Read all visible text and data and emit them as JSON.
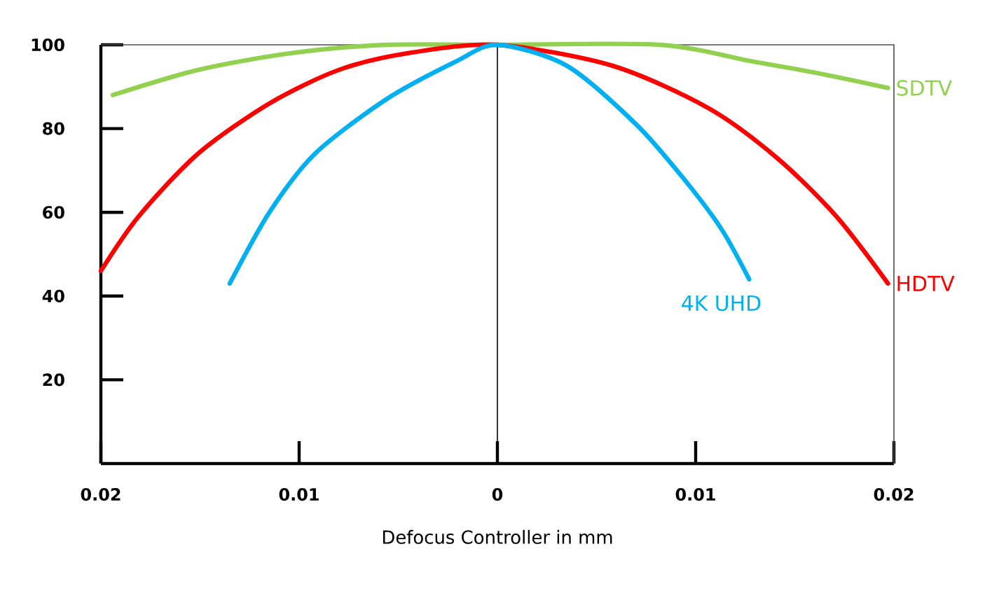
{
  "chart_data": {
    "type": "line",
    "xlabel": "Defocus Controller in mm",
    "xlim": [
      -0.02,
      0.02
    ],
    "ylim": [
      0,
      100
    ],
    "xticks": [
      {
        "value": -0.02,
        "label": "0.02"
      },
      {
        "value": -0.01,
        "label": "0.01"
      },
      0,
      0.01,
      0.02
    ],
    "yticks": [
      20,
      40,
      60,
      80,
      100
    ],
    "legend": false,
    "grid": false,
    "marker": "none",
    "line_style": "solid",
    "ref_lines": [
      {
        "axis": "x",
        "value": 0,
        "color": "#000000"
      }
    ],
    "series": [
      {
        "name": "SDTV",
        "color": "#92d050",
        "x": [
          -0.0194,
          -0.0151,
          -0.0104,
          -0.0056,
          0,
          0.0082,
          0.0129,
          0.0164,
          0.0197
        ],
        "values": [
          88,
          94,
          98,
          100,
          100,
          100,
          96,
          93,
          89.7
        ]
      },
      {
        "name": "HDTV",
        "color": "#ff0000",
        "x": [
          -0.02,
          -0.0181,
          -0.0151,
          -0.0115,
          -0.008,
          -0.0045,
          0,
          0.0058,
          0.0106,
          0.0141,
          0.0171,
          0.0197
        ],
        "values": [
          46,
          59,
          74,
          86,
          94,
          98,
          100,
          95,
          85,
          73,
          59,
          43
        ]
      },
      {
        "name": "4K UHD",
        "color": "#00b0f0",
        "x": [
          -0.0135,
          -0.0115,
          -0.0092,
          -0.0056,
          -0.0021,
          0,
          0.0035,
          0.007,
          0.0094,
          0.0113,
          0.0127
        ],
        "values": [
          43,
          60,
          74,
          87,
          96,
          100,
          95,
          81,
          68,
          56,
          44
        ]
      }
    ]
  }
}
